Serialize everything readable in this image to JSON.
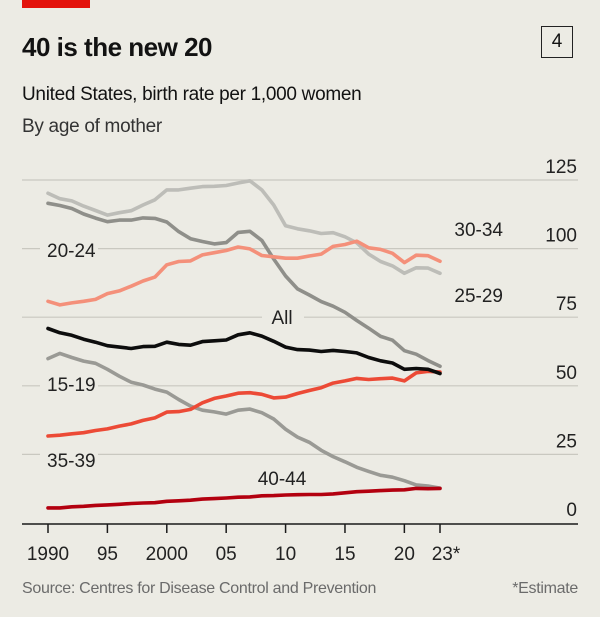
{
  "header": {
    "title": "40 is the new 20",
    "chart_number": "4",
    "subtitle": "United States, birth rate per 1,000 women",
    "subsubtitle": "By age of mother"
  },
  "footer": {
    "source": "Source: Centres for Disease Control and Prevention",
    "note": "*Estimate"
  },
  "colors": {
    "brand_red": "#e3120b",
    "background": "#ecebe4"
  },
  "chart_data": {
    "type": "line",
    "title": "40 is the new 20",
    "subtitle": "United States, birth rate per 1,000 women — By age of mother",
    "xlabel": "",
    "ylabel": "Births per 1,000 women",
    "ylim": [
      0,
      125
    ],
    "yticks": [
      0,
      25,
      50,
      75,
      100,
      125
    ],
    "ytick_labels": [
      "0",
      "25",
      "50",
      "75",
      "100",
      "125"
    ],
    "y_axis_position": "right",
    "grid": true,
    "xlim": [
      1990,
      2023
    ],
    "xticks": [
      1990,
      1995,
      2000,
      2005,
      2010,
      2015,
      2020,
      2023
    ],
    "xtick_labels": [
      "1990",
      "95",
      "2000",
      "05",
      "10",
      "15",
      "20",
      "23*"
    ],
    "x": [
      1990,
      1991,
      1992,
      1993,
      1994,
      1995,
      1996,
      1997,
      1998,
      1999,
      2000,
      2001,
      2002,
      2003,
      2004,
      2005,
      2006,
      2007,
      2008,
      2009,
      2010,
      2011,
      2012,
      2013,
      2014,
      2015,
      2016,
      2017,
      2018,
      2019,
      2020,
      2021,
      2022,
      2023
    ],
    "series": [
      {
        "name": "25-29",
        "label": "25-29",
        "color": "#bdbdb8",
        "values": [
          120.2,
          118.2,
          117.4,
          115.5,
          113.9,
          112.2,
          113.1,
          113.8,
          115.9,
          117.8,
          121.4,
          121.4,
          122.0,
          122.6,
          122.7,
          123.0,
          123.9,
          124.7,
          121.4,
          115.9,
          108.3,
          107.2,
          106.5,
          105.5,
          105.8,
          104.3,
          102.1,
          98.0,
          95.3,
          93.7,
          91.0,
          93.0,
          92.9,
          91.0
        ]
      },
      {
        "name": "20-24",
        "label": "20-24",
        "color": "#8f8f8a",
        "values": [
          116.5,
          115.7,
          114.6,
          112.6,
          111.1,
          109.8,
          110.4,
          110.4,
          111.2,
          111.0,
          109.7,
          106.2,
          103.6,
          102.6,
          101.7,
          102.2,
          105.9,
          106.3,
          103.0,
          96.2,
          90.0,
          85.3,
          83.1,
          80.7,
          79.0,
          76.8,
          73.8,
          71.0,
          68.0,
          66.6,
          62.8,
          61.5,
          59.2,
          57.1
        ]
      },
      {
        "name": "30-34",
        "label": "30-34",
        "color": "#f4907a",
        "values": [
          80.8,
          79.5,
          80.2,
          80.8,
          81.5,
          83.6,
          84.6,
          86.3,
          88.2,
          89.6,
          94.1,
          95.3,
          95.5,
          97.7,
          98.5,
          99.3,
          100.6,
          99.9,
          97.5,
          97.0,
          96.5,
          96.5,
          97.3,
          98.0,
          100.8,
          101.5,
          102.7,
          100.3,
          99.7,
          98.3,
          94.9,
          97.6,
          97.4,
          95.4
        ]
      },
      {
        "name": "15-19",
        "label": "15-19",
        "color": "#9a9a95",
        "values": [
          59.9,
          61.8,
          60.3,
          59.0,
          58.2,
          56.0,
          53.5,
          51.3,
          50.3,
          48.8,
          47.7,
          45.0,
          42.6,
          41.1,
          40.5,
          39.7,
          41.1,
          41.5,
          40.2,
          37.9,
          34.2,
          31.3,
          29.4,
          26.5,
          24.2,
          22.3,
          20.3,
          18.8,
          17.4,
          16.7,
          15.4,
          13.9,
          13.5,
          12.7
        ]
      },
      {
        "name": "35-39",
        "label": "35-39",
        "color": "#ec4a36",
        "values": [
          31.7,
          32.0,
          32.5,
          32.9,
          33.7,
          34.3,
          35.3,
          36.1,
          37.4,
          38.3,
          40.4,
          40.6,
          41.4,
          43.8,
          45.4,
          46.3,
          47.3,
          47.5,
          46.9,
          45.6,
          45.9,
          47.2,
          48.3,
          49.3,
          51.0,
          51.8,
          52.7,
          52.3,
          52.6,
          52.8,
          51.8,
          54.7,
          55.3,
          55.0
        ]
      },
      {
        "name": "40-44",
        "label": "40-44",
        "color": "#b3000f",
        "values": [
          5.5,
          5.5,
          5.9,
          6.1,
          6.4,
          6.6,
          6.8,
          7.1,
          7.3,
          7.4,
          7.9,
          8.1,
          8.3,
          8.7,
          8.9,
          9.1,
          9.4,
          9.5,
          9.9,
          10.0,
          10.2,
          10.3,
          10.4,
          10.4,
          10.6,
          11.0,
          11.4,
          11.6,
          11.8,
          12.0,
          12.1,
          12.6,
          12.5,
          12.6
        ]
      },
      {
        "name": "All",
        "label": "All",
        "color": "#0d0d0d",
        "values": [
          70.9,
          69.3,
          68.4,
          67.0,
          65.9,
          64.6,
          64.1,
          63.6,
          64.3,
          64.4,
          65.9,
          65.1,
          64.8,
          66.1,
          66.4,
          66.7,
          68.6,
          69.3,
          68.1,
          66.2,
          64.1,
          63.2,
          63.0,
          62.5,
          62.9,
          62.5,
          62.0,
          60.3,
          59.1,
          58.3,
          56.0,
          56.3,
          56.0,
          54.5
        ]
      }
    ],
    "annotations": [
      "20-24",
      "30-34",
      "25-29",
      "All",
      "15-19",
      "35-39",
      "40-44"
    ],
    "legend": "inline labels"
  }
}
